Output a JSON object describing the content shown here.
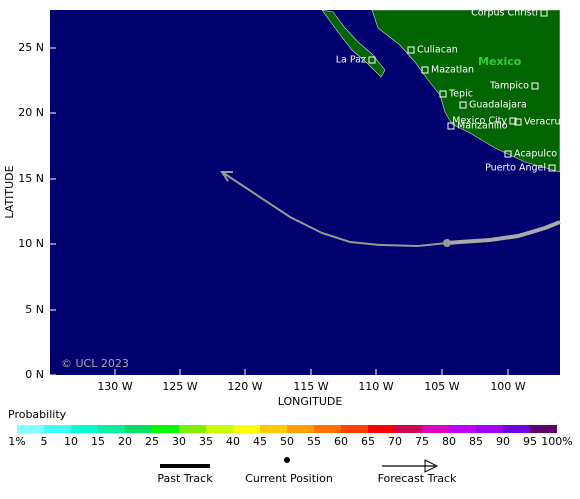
{
  "map": {
    "y_axis_title": "LATITUDE",
    "x_axis_title": "LONGITUDE",
    "lat_labels": [
      "25 N",
      "20 N",
      "15 N",
      "10 N",
      "5 N",
      "0 N"
    ],
    "lon_labels": [
      "130 W",
      "125 W",
      "120 W",
      "115 W",
      "110 W",
      "105 W",
      "100 W"
    ],
    "country": "Mexico",
    "cities": [
      "Corpus Christi",
      "Culiacan",
      "La Paz",
      "Mazatlan",
      "Tampico",
      "Tepic",
      "Guadalajara",
      "Mexico City",
      "Manzanillo",
      "Veracruz",
      "Acapulco",
      "Puerto Angel"
    ],
    "copyright": "© UCL 2023"
  },
  "legend": {
    "title": "Probability",
    "scale_labels": [
      "1%",
      "5",
      "10",
      "15",
      "20",
      "25",
      "30",
      "35",
      "40",
      "45",
      "50",
      "55",
      "60",
      "65",
      "70",
      "75",
      "80",
      "85",
      "90",
      "95",
      "100%"
    ],
    "past_track": "Past Track",
    "current_position": "Current Position",
    "forecast_track": "Forecast Track"
  }
}
